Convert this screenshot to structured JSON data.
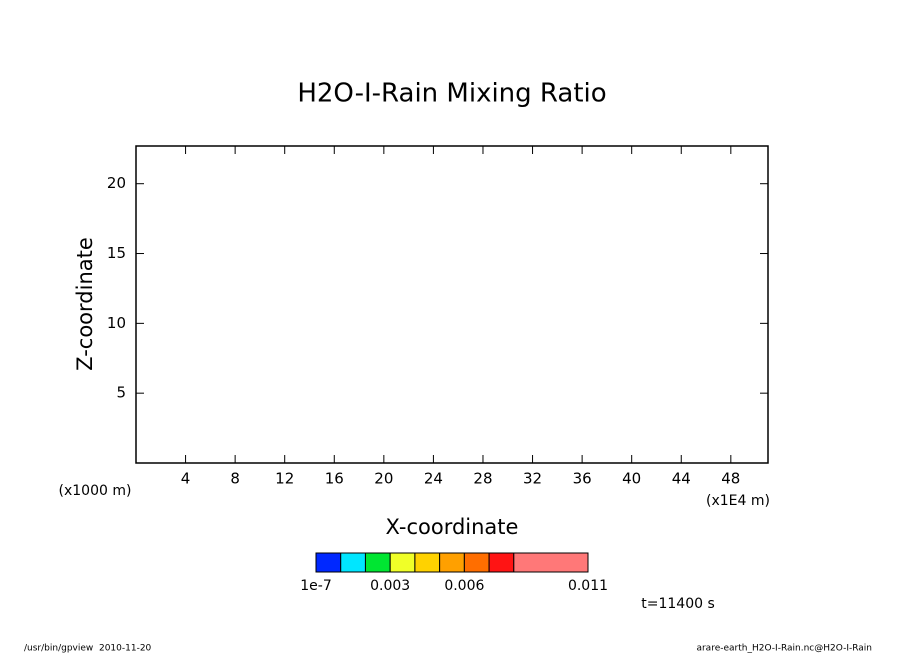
{
  "chart_data": {
    "type": "contour",
    "title": "H2O-I-Rain Mixing Ratio",
    "x_label": "X-coordinate",
    "y_label": "Z-coordinate",
    "x_unit": "(x1E4 m)",
    "y_unit": "(x1000 m)",
    "xlim": [
      0,
      51
    ],
    "xticks": [
      4,
      8,
      12,
      16,
      20,
      24,
      28,
      32,
      36,
      40,
      44,
      48
    ],
    "ylim": [
      0,
      22.7
    ],
    "yticks": [
      5,
      10,
      15,
      20
    ],
    "colorbar": {
      "levels": [
        1e-07,
        0.001,
        0.002,
        0.003,
        0.004,
        0.005,
        0.006,
        0.007,
        0.008,
        0.011
      ],
      "colors": [
        "#0028ff",
        "#00e6ff",
        "#00e632",
        "#f0ff28",
        "#ffd200",
        "#ffa000",
        "#ff6e00",
        "#ff1414",
        "#ff7878"
      ],
      "ticks": [
        1e-07,
        0.003,
        0.006,
        0.011
      ]
    },
    "time_label": "t=11400 s",
    "footer_left": "/usr/bin/gpview  2010-11-20",
    "footer_right": "arare-earth_H2O-I-Rain.nc@H2O-I-Rain"
  }
}
